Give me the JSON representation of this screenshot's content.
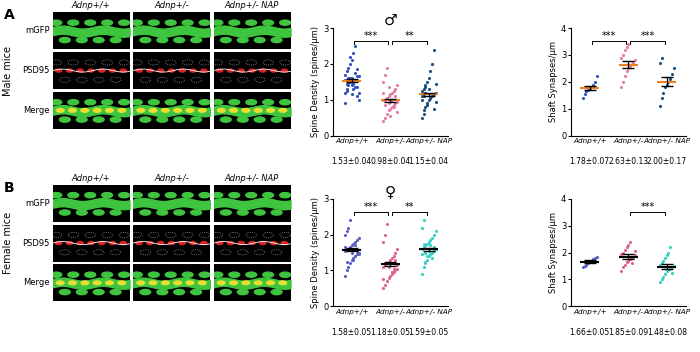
{
  "panels": [
    {
      "label": "A",
      "side_label": "Male mice",
      "columns": [
        "Adnp+/+",
        "Adnp+/-",
        "Adnp+/- NAP"
      ],
      "rows": [
        "mGFP",
        "PSD95",
        "Merge"
      ]
    },
    {
      "label": "B",
      "side_label": "Female mice",
      "columns": [
        "Adnp+/+",
        "Adnp+/-",
        "Adnp+/- NAP"
      ],
      "rows": [
        "mGFP",
        "PSD95",
        "Merge"
      ]
    }
  ],
  "chart_data": [
    {
      "type": "scatter",
      "title": "♂",
      "ylabel": "Spine Density (spines/µm)",
      "categories": [
        "Adnp+/+",
        "Adnp+/-",
        "Adnp+/- NAP"
      ],
      "colors": [
        "#2f4fc2",
        "#e87aa8",
        "#1d4f7c"
      ],
      "values": [
        [
          1.2,
          1.3,
          1.4,
          1.5,
          1.6,
          1.45,
          1.55,
          1.35,
          1.65,
          1.7,
          1.8,
          1.9,
          2.0,
          2.1,
          2.3,
          2.5,
          1.1,
          1.0,
          0.9,
          1.25,
          1.5,
          1.6,
          1.4,
          1.3,
          1.75,
          1.85,
          1.2,
          1.55,
          1.45,
          1.6,
          2.2,
          1.15,
          1.5,
          1.35,
          1.65
        ],
        [
          0.4,
          0.5,
          0.6,
          0.7,
          0.75,
          0.8,
          0.85,
          0.9,
          0.95,
          1.0,
          1.0,
          1.05,
          1.1,
          1.15,
          1.2,
          1.25,
          1.3,
          1.4,
          1.5,
          1.7,
          1.9,
          0.9,
          0.95,
          1.0,
          0.8,
          1.1,
          0.65,
          1.2,
          0.85,
          1.05,
          1.35,
          0.55
        ],
        [
          0.5,
          0.7,
          0.8,
          0.9,
          1.0,
          1.05,
          1.1,
          1.15,
          1.2,
          1.25,
          1.3,
          1.4,
          1.5,
          1.6,
          1.8,
          2.0,
          2.4,
          0.95,
          1.0,
          1.1,
          1.2,
          0.85,
          1.3,
          1.05,
          1.15,
          0.75,
          1.45,
          1.1,
          0.6,
          1.35
        ]
      ],
      "means": [
        1.53,
        0.98,
        1.15
      ],
      "errors": [
        0.04,
        0.04,
        0.04
      ],
      "mean_labels": [
        "1.53±0.04",
        "0.98±0.04",
        "1.15±0.04"
      ],
      "annotations": [
        {
          "from": 0,
          "to": 1,
          "text": "***"
        },
        {
          "from": 1,
          "to": 2,
          "text": "**"
        }
      ],
      "ylim": [
        0,
        3
      ],
      "yticks": [
        0,
        1,
        2,
        3
      ]
    },
    {
      "type": "scatter",
      "ylabel": "Shaft Synapses/µm",
      "categories": [
        "Adnp+/+",
        "Adnp+/-",
        "Adnp+/- NAP"
      ],
      "colors": [
        "#2f4fc2",
        "#e87aa8",
        "#1d4f7c"
      ],
      "values": [
        [
          1.4,
          1.55,
          1.65,
          1.7,
          1.75,
          1.8,
          1.9,
          2.0,
          2.2
        ],
        [
          1.8,
          2.0,
          2.2,
          2.4,
          2.5,
          2.6,
          2.65,
          2.7,
          2.8,
          2.9,
          3.0,
          3.2,
          3.3,
          3.4
        ],
        [
          1.1,
          1.4,
          1.6,
          1.8,
          1.9,
          2.0,
          2.1,
          2.3,
          2.5,
          2.7,
          2.9
        ]
      ],
      "means": [
        1.78,
        2.63,
        2.0
      ],
      "errors": [
        0.07,
        0.13,
        0.17
      ],
      "mean_labels": [
        "1.78±0.07",
        "2.63±0.13",
        "2.00±0.17"
      ],
      "annotations": [
        {
          "from": 0,
          "to": 1,
          "text": "***"
        },
        {
          "from": 1,
          "to": 2,
          "text": "***"
        }
      ],
      "ylim": [
        0,
        4
      ],
      "yticks": [
        0,
        1,
        2,
        3,
        4
      ]
    },
    {
      "type": "scatter",
      "title": "♀",
      "ylabel": "Spine Density (spines/µm)",
      "categories": [
        "Adnp+/+",
        "Adnp+/-",
        "Adnp+/- NAP"
      ],
      "colors": [
        "#5a5fc8",
        "#e2628f",
        "#33d1c6"
      ],
      "values": [
        [
          0.85,
          1.0,
          1.1,
          1.2,
          1.3,
          1.35,
          1.4,
          1.45,
          1.5,
          1.55,
          1.6,
          1.6,
          1.65,
          1.7,
          1.75,
          1.8,
          1.85,
          1.9,
          2.0,
          2.1,
          2.2,
          2.4,
          1.5,
          1.3,
          1.7,
          1.55,
          1.45,
          1.65,
          1.25,
          1.6
        ],
        [
          0.5,
          0.6,
          0.7,
          0.8,
          0.85,
          0.9,
          0.95,
          1.0,
          1.05,
          1.1,
          1.15,
          1.2,
          1.25,
          1.3,
          1.35,
          1.4,
          1.5,
          1.6,
          1.8,
          2.0,
          2.3,
          1.1,
          1.2,
          0.95,
          1.05,
          1.3,
          1.15,
          0.75
        ],
        [
          0.9,
          1.1,
          1.2,
          1.3,
          1.4,
          1.45,
          1.5,
          1.55,
          1.6,
          1.6,
          1.65,
          1.7,
          1.75,
          1.8,
          1.85,
          1.9,
          2.0,
          2.1,
          2.2,
          2.4,
          1.5,
          1.4,
          1.55,
          1.7,
          1.35,
          1.65,
          1.6,
          1.45,
          1.75,
          1.25
        ]
      ],
      "means": [
        1.58,
        1.18,
        1.59
      ],
      "errors": [
        0.05,
        0.05,
        0.05
      ],
      "mean_labels": [
        "1.58±0.05",
        "1.18±0.05",
        "1.59±0.05"
      ],
      "annotations": [
        {
          "from": 0,
          "to": 1,
          "text": "***"
        },
        {
          "from": 1,
          "to": 2,
          "text": "**"
        }
      ],
      "ylim": [
        0,
        3
      ],
      "yticks": [
        0,
        1,
        2,
        3
      ]
    },
    {
      "type": "scatter",
      "ylabel": "Shaft Synapses/µm",
      "categories": [
        "Adnp+/+",
        "Adnp+/-",
        "Adnp+/- NAP"
      ],
      "colors": [
        "#5a5fc8",
        "#e2628f",
        "#33d1c6"
      ],
      "values": [
        [
          1.45,
          1.5,
          1.55,
          1.6,
          1.65,
          1.7,
          1.75,
          1.8,
          1.85
        ],
        [
          1.3,
          1.45,
          1.55,
          1.65,
          1.7,
          1.75,
          1.8,
          1.85,
          1.9,
          1.95,
          2.0,
          2.1,
          2.2,
          2.3,
          2.4,
          1.6,
          1.85,
          2.05
        ],
        [
          0.9,
          1.0,
          1.1,
          1.2,
          1.3,
          1.35,
          1.4,
          1.45,
          1.5,
          1.55,
          1.6,
          1.7,
          1.8,
          1.9,
          2.0,
          2.2,
          1.25,
          1.5
        ]
      ],
      "means": [
        1.66,
        1.85,
        1.48
      ],
      "errors": [
        0.05,
        0.09,
        0.08
      ],
      "mean_labels": [
        "1.66±0.05",
        "1.85±0.09",
        "1.48±0.08"
      ],
      "annotations": [
        {
          "from": 1,
          "to": 2,
          "text": "***"
        }
      ],
      "ylim": [
        0,
        4
      ],
      "yticks": [
        0,
        1,
        2,
        3,
        4
      ]
    }
  ]
}
